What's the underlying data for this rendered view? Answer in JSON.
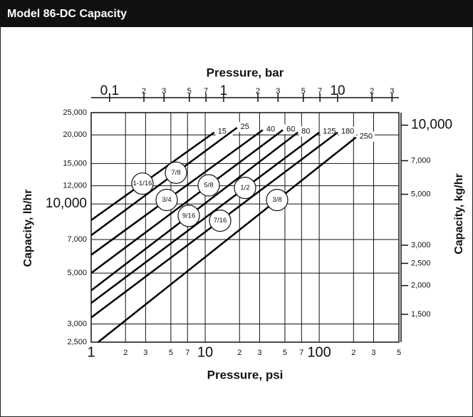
{
  "chart_data": {
    "type": "line",
    "header": "Model 86-DC Capacity",
    "xlabel": "Pressure, psi",
    "x2label": "Pressure, bar",
    "ylabel": "Capacity, lb/hr",
    "y2label": "Capacity, kg/hr",
    "log_x": true,
    "log_y": true,
    "grid": true,
    "color": "#000000",
    "xlim": [
      1,
      500
    ],
    "xticks": [
      1,
      2,
      3,
      5,
      7,
      10,
      {
        "value": 20,
        "label": "2"
      },
      {
        "value": 30,
        "label": "3"
      },
      {
        "value": 50,
        "label": "5"
      },
      {
        "value": 70,
        "label": "7"
      },
      100,
      {
        "value": 200,
        "label": "2"
      },
      {
        "value": 300,
        "label": "3"
      },
      {
        "value": 500,
        "label": "5"
      }
    ],
    "x2lim": [
      0.06895,
      34.47
    ],
    "x2ticks": [
      0.1,
      {
        "value": 0.2,
        "label": "2"
      },
      {
        "value": 0.3,
        "label": "3"
      },
      {
        "value": 0.5,
        "label": "5"
      },
      {
        "value": 0.7,
        "label": "7"
      },
      1,
      2,
      3,
      5,
      7,
      10,
      {
        "value": 20,
        "label": "2"
      },
      {
        "value": 30,
        "label": "3"
      }
    ],
    "ylim": [
      2500,
      25000
    ],
    "yticks": [
      {
        "value": 2500,
        "label": "2,500"
      },
      {
        "value": 3000,
        "label": "3,000"
      },
      {
        "value": 5000,
        "label": "5,000"
      },
      {
        "value": 7000,
        "label": "7,000"
      },
      {
        "value": 10000,
        "label": "10,000"
      },
      {
        "value": 12000,
        "label": "12,000"
      },
      {
        "value": 15000,
        "label": "15,000"
      },
      {
        "value": 20000,
        "label": "20,000"
      },
      {
        "value": 25000,
        "label": "25,000"
      }
    ],
    "y2lim": [
      1134,
      11340
    ],
    "y2ticks": [
      {
        "value": 1500,
        "label": "1,500"
      },
      {
        "value": 2000,
        "label": "2,000"
      },
      {
        "value": 2500,
        "label": "2,500"
      },
      {
        "value": 3000,
        "label": "3,000"
      },
      {
        "value": 5000,
        "label": "5,000"
      },
      {
        "value": 7000,
        "label": "7,000"
      },
      {
        "value": 10000,
        "label": "10,000"
      }
    ],
    "series": [
      {
        "name": "1-1/16",
        "label": "15",
        "x": [
          1,
          12
        ],
        "values": [
          8500,
          20500
        ]
      },
      {
        "name": "7/8",
        "label": "25",
        "x": [
          1,
          19
        ],
        "values": [
          7300,
          21500
        ]
      },
      {
        "name": "3/4",
        "label": "40",
        "x": [
          1,
          32
        ],
        "values": [
          6000,
          21000
        ]
      },
      {
        "name": "5/8",
        "label": "60",
        "x": [
          1,
          48
        ],
        "values": [
          5000,
          21000
        ]
      },
      {
        "name": "9/16",
        "label": "80",
        "x": [
          1,
          65
        ],
        "values": [
          4200,
          20500
        ]
      },
      {
        "name": "1/2",
        "label": "125",
        "x": [
          1,
          100
        ],
        "values": [
          3700,
          20500
        ]
      },
      {
        "name": "7/16",
        "label": "180",
        "x": [
          1,
          145
        ],
        "values": [
          3200,
          20500
        ]
      },
      {
        "name": "3/8",
        "label": "250",
        "x": [
          1.15,
          210
        ],
        "values": [
          2500,
          19500
        ]
      }
    ]
  }
}
